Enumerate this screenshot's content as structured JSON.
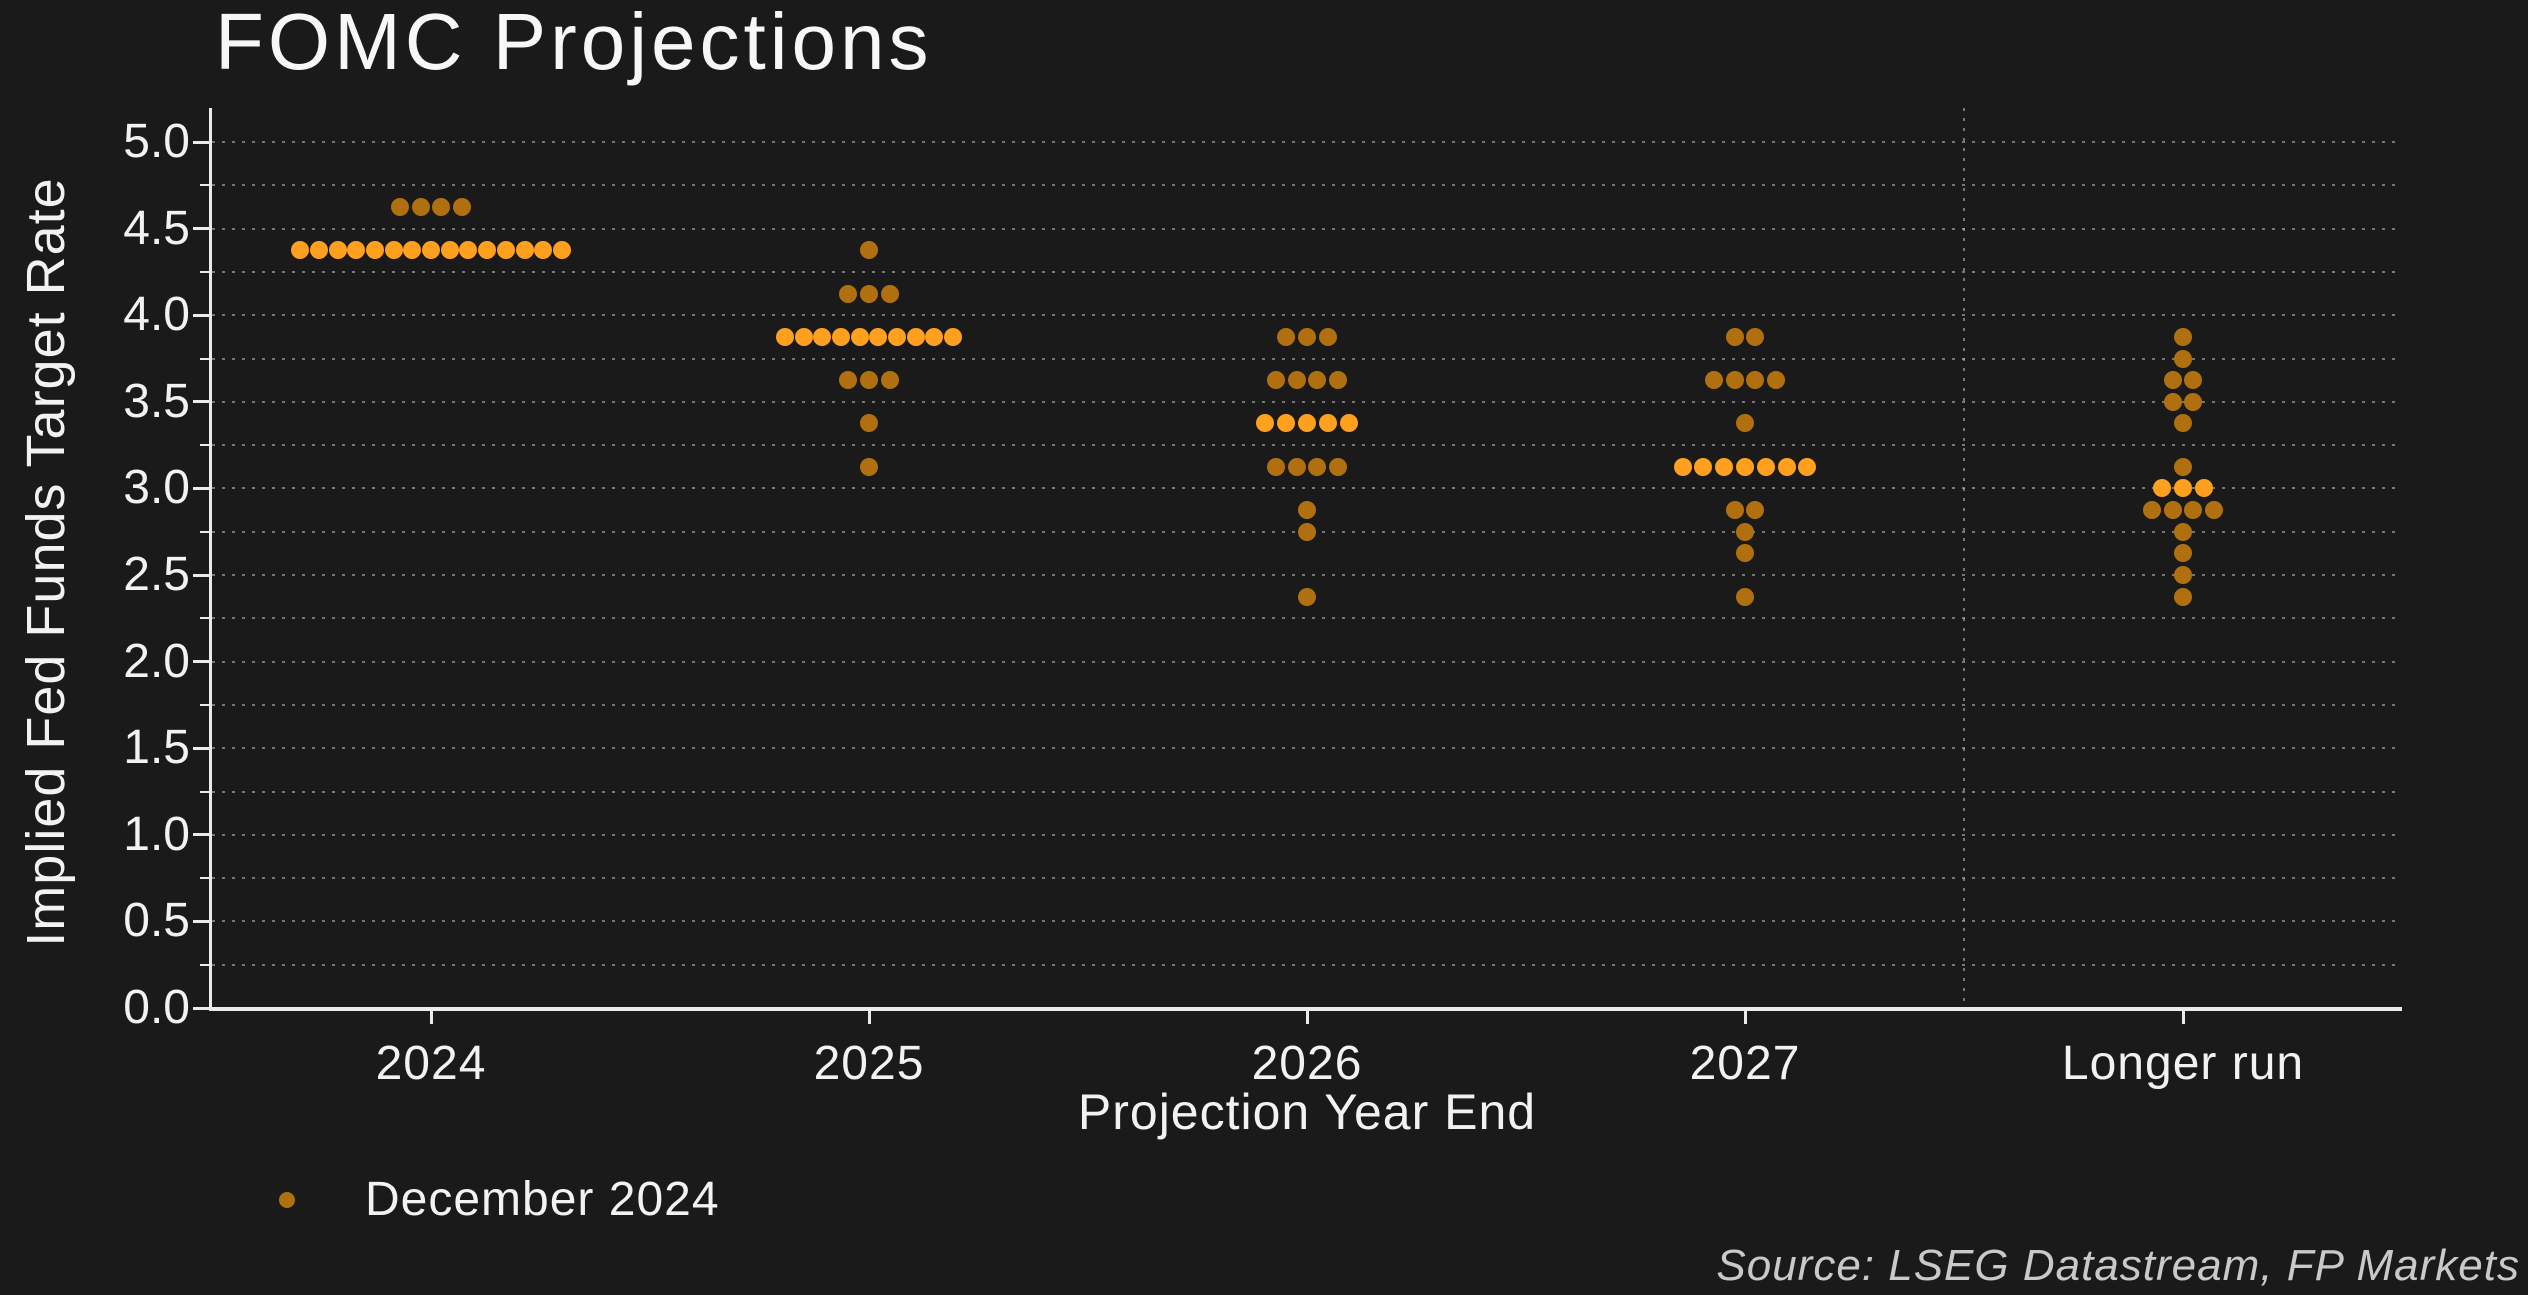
{
  "title": "FOMC Projections",
  "legend": {
    "label": "December 2024"
  },
  "source": "Source: LSEG Datastream, FP Markets",
  "colors": {
    "background": "#1a1a1a",
    "dot": "#b0700f",
    "dot_median": "#ffa01e",
    "text": "#f2f2f2",
    "grid": "#c3c3c3",
    "spine": "#ebebeb",
    "source_text": "#c9c9c9"
  },
  "chart_data": {
    "type": "scatter",
    "title": "FOMC Projections",
    "xlabel": "Projection Year End",
    "ylabel": "Implied Fed Funds Target Rate",
    "categories": [
      "2024",
      "2025",
      "2026",
      "2027",
      "Longer run"
    ],
    "ylim": [
      0.0,
      5.0
    ],
    "ytick_step": 0.5,
    "ytick_labels": [
      "5.0",
      "4.5",
      "4.0",
      "3.5",
      "3.0",
      "2.5",
      "2.0",
      "1.5",
      "1.0",
      "0.5",
      "0.0"
    ],
    "grid": {
      "horizontal_interval": 0.25,
      "style": "dotted",
      "vertical_separator_before": "Longer run"
    },
    "legend_position": "bottom-left",
    "series_name": "December 2024",
    "groups": [
      {
        "category": "2024",
        "rows": [
          {
            "rate": 4.625,
            "count": 4,
            "median": false
          },
          {
            "rate": 4.375,
            "count": 15,
            "median": true
          }
        ]
      },
      {
        "category": "2025",
        "rows": [
          {
            "rate": 4.375,
            "count": 1,
            "median": false
          },
          {
            "rate": 4.125,
            "count": 3,
            "median": false
          },
          {
            "rate": 3.875,
            "count": 10,
            "median": true
          },
          {
            "rate": 3.625,
            "count": 3,
            "median": false
          },
          {
            "rate": 3.375,
            "count": 1,
            "median": false
          },
          {
            "rate": 3.125,
            "count": 1,
            "median": false
          }
        ]
      },
      {
        "category": "2026",
        "rows": [
          {
            "rate": 3.875,
            "count": 3,
            "median": false
          },
          {
            "rate": 3.625,
            "count": 4,
            "median": false
          },
          {
            "rate": 3.375,
            "count": 5,
            "median": true
          },
          {
            "rate": 3.125,
            "count": 4,
            "median": false
          },
          {
            "rate": 2.875,
            "count": 1,
            "median": false
          },
          {
            "rate": 2.75,
            "count": 1,
            "median": false
          },
          {
            "rate": 2.375,
            "count": 1,
            "median": false
          }
        ]
      },
      {
        "category": "2027",
        "rows": [
          {
            "rate": 3.875,
            "count": 2,
            "median": false
          },
          {
            "rate": 3.625,
            "count": 4,
            "median": false
          },
          {
            "rate": 3.375,
            "count": 1,
            "median": false
          },
          {
            "rate": 3.125,
            "count": 7,
            "median": true
          },
          {
            "rate": 2.875,
            "count": 2,
            "median": false
          },
          {
            "rate": 2.75,
            "count": 1,
            "median": false
          },
          {
            "rate": 2.625,
            "count": 1,
            "median": false
          },
          {
            "rate": 2.375,
            "count": 1,
            "median": false
          }
        ]
      },
      {
        "category": "Longer run",
        "rows": [
          {
            "rate": 3.875,
            "count": 1,
            "median": false
          },
          {
            "rate": 3.75,
            "count": 1,
            "median": false
          },
          {
            "rate": 3.625,
            "count": 2,
            "median": false
          },
          {
            "rate": 3.5,
            "count": 2,
            "median": false
          },
          {
            "rate": 3.375,
            "count": 1,
            "median": false
          },
          {
            "rate": 3.125,
            "count": 1,
            "median": false
          },
          {
            "rate": 3.0,
            "count": 3,
            "median": true
          },
          {
            "rate": 2.875,
            "count": 4,
            "median": false
          },
          {
            "rate": 2.75,
            "count": 1,
            "median": false
          },
          {
            "rate": 2.625,
            "count": 1,
            "median": false
          },
          {
            "rate": 2.5,
            "count": 1,
            "median": false
          },
          {
            "rate": 2.375,
            "count": 1,
            "median": false
          }
        ]
      }
    ]
  }
}
